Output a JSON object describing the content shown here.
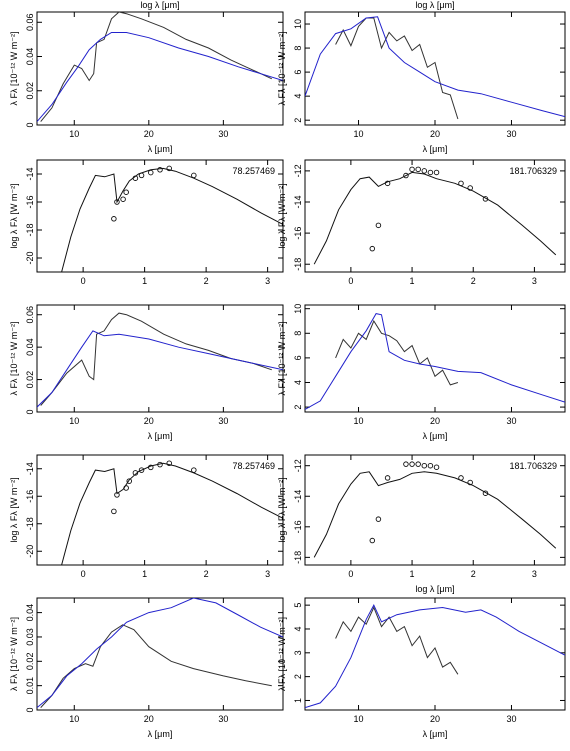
{
  "chart_data": [
    {
      "type": "line",
      "top_label": "log λ [μm]",
      "xlabel": "λ [μm]",
      "ylabel": "λ Fλ [10⁻¹² W m⁻²]",
      "xlim": [
        5,
        38
      ],
      "ylim": [
        0,
        0.066
      ],
      "xticks": [
        10,
        20,
        30
      ],
      "yticks": [
        0,
        0.02,
        0.04,
        0.06
      ],
      "series": [
        {
          "color": "#333333",
          "x": [
            5.5,
            7,
            8.5,
            10,
            11,
            12,
            12.6,
            13,
            14,
            15,
            16,
            17,
            19,
            22,
            25,
            28,
            31,
            33,
            35,
            36.5
          ],
          "values": [
            0.002,
            0.01,
            0.024,
            0.035,
            0.033,
            0.026,
            0.03,
            0.048,
            0.05,
            0.062,
            0.066,
            0.065,
            0.062,
            0.057,
            0.05,
            0.045,
            0.038,
            0.034,
            0.03,
            0.027
          ]
        },
        {
          "color": "#2222cc",
          "x": [
            5,
            7,
            9,
            10.5,
            12,
            13.5,
            15,
            17,
            20,
            24,
            28,
            32,
            38
          ],
          "values": [
            0.002,
            0.012,
            0.025,
            0.034,
            0.044,
            0.05,
            0.054,
            0.054,
            0.051,
            0.045,
            0.04,
            0.034,
            0.026
          ]
        }
      ]
    },
    {
      "type": "line",
      "top_label": "log λ [μm]",
      "xlabel": "λ [μm]",
      "ylabel": "λ Fλ [10⁻¹² W m⁻²]",
      "xlim": [
        3,
        37
      ],
      "ylim": [
        1.6,
        11
      ],
      "xticks": [
        10,
        20,
        30
      ],
      "yticks": [
        2,
        4,
        6,
        8,
        10
      ],
      "series": [
        {
          "color": "#333333",
          "x": [
            7,
            8,
            9,
            10,
            11,
            12,
            13,
            14,
            15,
            16,
            17,
            18,
            19,
            20,
            21,
            22,
            23
          ],
          "values": [
            8.3,
            9.5,
            8.2,
            9.8,
            10.5,
            10.5,
            8,
            9.3,
            8.6,
            9,
            7.8,
            8.3,
            6.4,
            6.8,
            4.3,
            4.1,
            2.1
          ]
        },
        {
          "color": "#2222cc",
          "x": [
            3,
            5,
            7,
            9,
            11,
            12.5,
            14,
            16,
            18,
            20,
            23,
            26,
            30,
            34,
            37
          ],
          "values": [
            4,
            7.5,
            9.2,
            9.6,
            10.5,
            10.6,
            8,
            6.8,
            6,
            5.2,
            4.5,
            4.2,
            3.5,
            2.8,
            2.3
          ]
        }
      ]
    },
    {
      "type": "line",
      "annotation": "78.257469",
      "ylabel": "log λ Fλ [W m⁻²]",
      "xlim": [
        -0.75,
        3.25
      ],
      "ylim": [
        -21,
        -13
      ],
      "xticks": [
        0,
        1,
        2,
        3
      ],
      "yticks": [
        -20,
        -18,
        -16,
        -14
      ],
      "series": [
        {
          "color": "#111111",
          "x": [
            -0.35,
            -0.2,
            -0.05,
            0.1,
            0.2,
            0.35,
            0.5,
            0.55,
            0.65,
            0.75,
            0.9,
            1.1,
            1.3,
            1.5,
            1.8,
            2.1,
            2.5,
            2.9,
            3.25
          ],
          "values": [
            -21,
            -18.5,
            -16.5,
            -15,
            -14.1,
            -14.2,
            -14,
            -16,
            -15.2,
            -14.5,
            -14,
            -13.7,
            -13.6,
            -13.8,
            -14.3,
            -14.9,
            -15.8,
            -16.8,
            -17.6
          ]
        },
        {
          "color": "#111111",
          "marker": "circle",
          "x": [
            0.5,
            0.55,
            0.65,
            0.7,
            0.85,
            0.95,
            1.1,
            1.25,
            1.4,
            1.8
          ],
          "values": [
            -17.2,
            -16,
            -15.8,
            -15.3,
            -14.3,
            -14.1,
            -13.9,
            -13.7,
            -13.6,
            -14.1
          ]
        }
      ]
    },
    {
      "type": "line",
      "annotation": "181.706329",
      "ylabel": "log λ Fλ [W m⁻²]",
      "xlim": [
        -0.75,
        3.5
      ],
      "ylim": [
        -18.5,
        -11.3
      ],
      "xticks": [
        0,
        1,
        2,
        3
      ],
      "yticks": [
        -18,
        -16,
        -14,
        -12
      ],
      "series": [
        {
          "color": "#111111",
          "x": [
            -0.6,
            -0.4,
            -0.2,
            0,
            0.15,
            0.3,
            0.45,
            0.6,
            0.8,
            1,
            1.2,
            1.4,
            1.7,
            2,
            2.4,
            2.8,
            3.1,
            3.35
          ],
          "values": [
            -18,
            -16.5,
            -14.5,
            -13.2,
            -12.5,
            -12.4,
            -13,
            -12.7,
            -12.5,
            -12.1,
            -12.2,
            -12.5,
            -12.8,
            -13.3,
            -14.2,
            -15.5,
            -16.5,
            -17.4
          ]
        },
        {
          "color": "#111111",
          "marker": "circle",
          "x": [
            0.35,
            0.45,
            0.6,
            0.9,
            1,
            1.1,
            1.2,
            1.3,
            1.4,
            1.8,
            1.95,
            2.2
          ],
          "values": [
            -17,
            -15.5,
            -12.8,
            -12.3,
            -11.9,
            -11.9,
            -12,
            -12.1,
            -12.1,
            -12.8,
            -13.1,
            -13.8
          ]
        }
      ]
    },
    {
      "type": "line",
      "xlabel": "λ [μm]",
      "ylabel": "λ Fλ [10⁻¹² W m⁻²]",
      "xlim": [
        5,
        38
      ],
      "ylim": [
        0,
        0.066
      ],
      "xticks": [
        10,
        20,
        30
      ],
      "yticks": [
        0,
        0.02,
        0.04,
        0.06
      ],
      "series": [
        {
          "color": "#333333",
          "x": [
            5.5,
            7,
            9,
            11,
            12,
            12.6,
            13,
            14,
            15,
            16,
            17,
            19,
            22,
            25,
            28,
            31,
            34,
            36.5
          ],
          "values": [
            0.004,
            0.012,
            0.024,
            0.032,
            0.022,
            0.02,
            0.048,
            0.05,
            0.057,
            0.061,
            0.06,
            0.056,
            0.048,
            0.042,
            0.038,
            0.033,
            0.03,
            0.026
          ]
        },
        {
          "color": "#2222cc",
          "x": [
            5,
            7,
            9,
            11,
            12.5,
            14,
            16,
            20,
            24,
            28,
            32,
            38
          ],
          "values": [
            0.003,
            0.012,
            0.026,
            0.04,
            0.05,
            0.047,
            0.048,
            0.045,
            0.04,
            0.036,
            0.032,
            0.026
          ]
        }
      ]
    },
    {
      "type": "line",
      "xlabel": "λ [μm]",
      "ylabel": "λ Fλ [10⁻¹² W m⁻²]",
      "xlim": [
        3,
        37
      ],
      "ylim": [
        1.6,
        10.3
      ],
      "xticks": [
        10,
        20,
        30
      ],
      "yticks": [
        2,
        4,
        6,
        8,
        10
      ],
      "series": [
        {
          "color": "#333333",
          "x": [
            7,
            8,
            9,
            10,
            11,
            12,
            13,
            14,
            15,
            16,
            17,
            18,
            19,
            20,
            21,
            22,
            23
          ],
          "values": [
            6,
            7.5,
            6.8,
            8,
            7.5,
            9,
            8,
            7.8,
            7.4,
            6.5,
            7,
            5.5,
            6,
            4.5,
            5,
            3.8,
            4
          ]
        },
        {
          "color": "#2222cc",
          "x": [
            3,
            5,
            7,
            9,
            11,
            12.3,
            13,
            14,
            16,
            18,
            20,
            23,
            26,
            30,
            34,
            37
          ],
          "values": [
            1.8,
            2.5,
            4.5,
            6.5,
            8.2,
            9.6,
            9.5,
            6.5,
            5.8,
            5.5,
            5.3,
            4.9,
            4.8,
            3.8,
            3,
            2.4
          ]
        }
      ]
    },
    {
      "type": "line",
      "annotation": "78.257469",
      "ylabel": "log λ Fλ [W m⁻²]",
      "xlim": [
        -0.75,
        3.25
      ],
      "ylim": [
        -21,
        -13
      ],
      "xticks": [
        0,
        1,
        2,
        3
      ],
      "yticks": [
        -20,
        -18,
        -16,
        -14
      ],
      "series": [
        {
          "color": "#111111",
          "x": [
            -0.35,
            -0.2,
            -0.05,
            0.1,
            0.2,
            0.35,
            0.5,
            0.55,
            0.65,
            0.75,
            0.9,
            1.1,
            1.3,
            1.5,
            1.8,
            2.1,
            2.5,
            2.9,
            3.25
          ],
          "values": [
            -21,
            -18.5,
            -16.5,
            -15,
            -14.1,
            -14.2,
            -14,
            -15.8,
            -15.5,
            -14.8,
            -14.2,
            -13.8,
            -13.6,
            -13.8,
            -14.3,
            -14.9,
            -15.8,
            -16.8,
            -17.6
          ]
        },
        {
          "color": "#111111",
          "marker": "circle",
          "x": [
            0.5,
            0.55,
            0.7,
            0.75,
            0.85,
            0.95,
            1.1,
            1.25,
            1.4,
            1.8
          ],
          "values": [
            -17.1,
            -15.9,
            -15.4,
            -14.9,
            -14.3,
            -14.1,
            -13.9,
            -13.7,
            -13.6,
            -14.1
          ]
        }
      ]
    },
    {
      "type": "line",
      "annotation": "181.706329",
      "xlabel": "log λ [μm]",
      "ylabel": "log λ Fλ [W m⁻²]",
      "xlim": [
        -0.75,
        3.5
      ],
      "ylim": [
        -18.5,
        -11.3
      ],
      "xticks": [
        0,
        1,
        2,
        3
      ],
      "yticks": [
        -18,
        -16,
        -14,
        -12
      ],
      "series": [
        {
          "color": "#111111",
          "x": [
            -0.6,
            -0.4,
            -0.2,
            0,
            0.15,
            0.3,
            0.45,
            0.6,
            0.8,
            1,
            1.2,
            1.4,
            1.7,
            2,
            2.4,
            2.8,
            3.1,
            3.35
          ],
          "values": [
            -18,
            -16.5,
            -14.5,
            -13.2,
            -12.5,
            -12.4,
            -13.3,
            -13.1,
            -12.9,
            -12.5,
            -12.4,
            -12.5,
            -12.8,
            -13.3,
            -14.2,
            -15.5,
            -16.5,
            -17.4
          ]
        },
        {
          "color": "#111111",
          "marker": "circle",
          "x": [
            0.35,
            0.45,
            0.6,
            0.9,
            1,
            1.1,
            1.2,
            1.3,
            1.4,
            1.8,
            1.95,
            2.2
          ],
          "values": [
            -16.9,
            -15.5,
            -12.8,
            -11.9,
            -11.9,
            -11.9,
            -12,
            -12,
            -12.1,
            -12.8,
            -13.1,
            -13.8
          ]
        }
      ]
    },
    {
      "type": "line",
      "xlabel": "λ [μm]",
      "ylabel": "λ Fλ [10⁻¹² W m⁻²]",
      "xlim": [
        5,
        38
      ],
      "ylim": [
        0,
        0.046
      ],
      "xticks": [
        10,
        20,
        30
      ],
      "yticks": [
        0,
        0.01,
        0.02,
        0.03,
        0.04
      ],
      "series": [
        {
          "color": "#333333",
          "x": [
            5.5,
            7,
            8.5,
            10,
            11.5,
            12.5,
            13.5,
            15,
            16.5,
            18,
            20,
            23,
            26,
            30,
            33,
            36.5
          ],
          "values": [
            0.001,
            0.006,
            0.013,
            0.017,
            0.019,
            0.018,
            0.026,
            0.032,
            0.035,
            0.033,
            0.026,
            0.02,
            0.017,
            0.014,
            0.012,
            0.01
          ]
        },
        {
          "color": "#2222cc",
          "x": [
            5,
            7,
            9,
            11,
            13,
            15,
            17,
            20,
            23,
            26,
            29,
            32,
            35,
            38
          ],
          "values": [
            0.001,
            0.006,
            0.014,
            0.019,
            0.025,
            0.03,
            0.036,
            0.04,
            0.042,
            0.046,
            0.044,
            0.039,
            0.034,
            0.03
          ]
        }
      ]
    },
    {
      "type": "line",
      "xlabel": "λ [μm]",
      "ylabel": "λ Fλ [10⁻¹² W m⁻²]",
      "xlim": [
        3,
        37
      ],
      "ylim": [
        0.6,
        5.3
      ],
      "xticks": [
        10,
        20,
        30
      ],
      "yticks": [
        1,
        2,
        3,
        4,
        5
      ],
      "series": [
        {
          "color": "#333333",
          "x": [
            7,
            8,
            9,
            10,
            11,
            12,
            13,
            14,
            15,
            16,
            17,
            18,
            19,
            20,
            21,
            22,
            23
          ],
          "values": [
            3.6,
            4.3,
            3.9,
            4.5,
            4.2,
            4.9,
            4.1,
            4.5,
            3.9,
            4.1,
            3.3,
            3.7,
            2.8,
            3.2,
            2.4,
            2.6,
            2.1
          ]
        },
        {
          "color": "#2222cc",
          "x": [
            3,
            5,
            7,
            9,
            11,
            12,
            13,
            15,
            18,
            21,
            24,
            26,
            28,
            31,
            34,
            37
          ],
          "values": [
            0.7,
            0.9,
            1.6,
            2.8,
            4.4,
            5,
            4.3,
            4.6,
            4.8,
            4.9,
            4.7,
            4.8,
            4.5,
            3.9,
            3.4,
            2.9
          ]
        }
      ]
    }
  ]
}
